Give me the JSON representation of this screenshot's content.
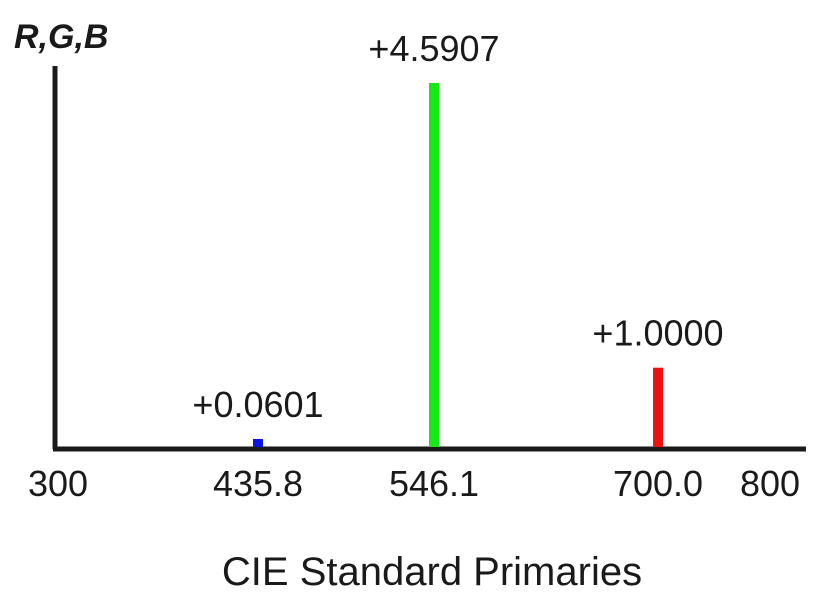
{
  "chart_data": {
    "type": "bar",
    "title": "",
    "xlabel": "CIE Standard Primaries",
    "ylabel": "R,G,B",
    "xlim": [
      300,
      800
    ],
    "ylim": [
      0,
      4.9
    ],
    "grid": false,
    "x_ticks": [
      "300",
      "435.8",
      "546.1",
      "700.0",
      "800"
    ],
    "x_tick_values": [
      300,
      435.8,
      546.1,
      700.0,
      800
    ],
    "bars": [
      {
        "x": 435.8,
        "value": 0.0601,
        "label": "+0.0601",
        "color": "#0a14e6"
      },
      {
        "x": 546.1,
        "value": 4.5907,
        "label": "+4.5907",
        "color": "#17e817"
      },
      {
        "x": 700.0,
        "value": 1.0,
        "label": "+1.0000",
        "color": "#ee1111"
      }
    ]
  }
}
